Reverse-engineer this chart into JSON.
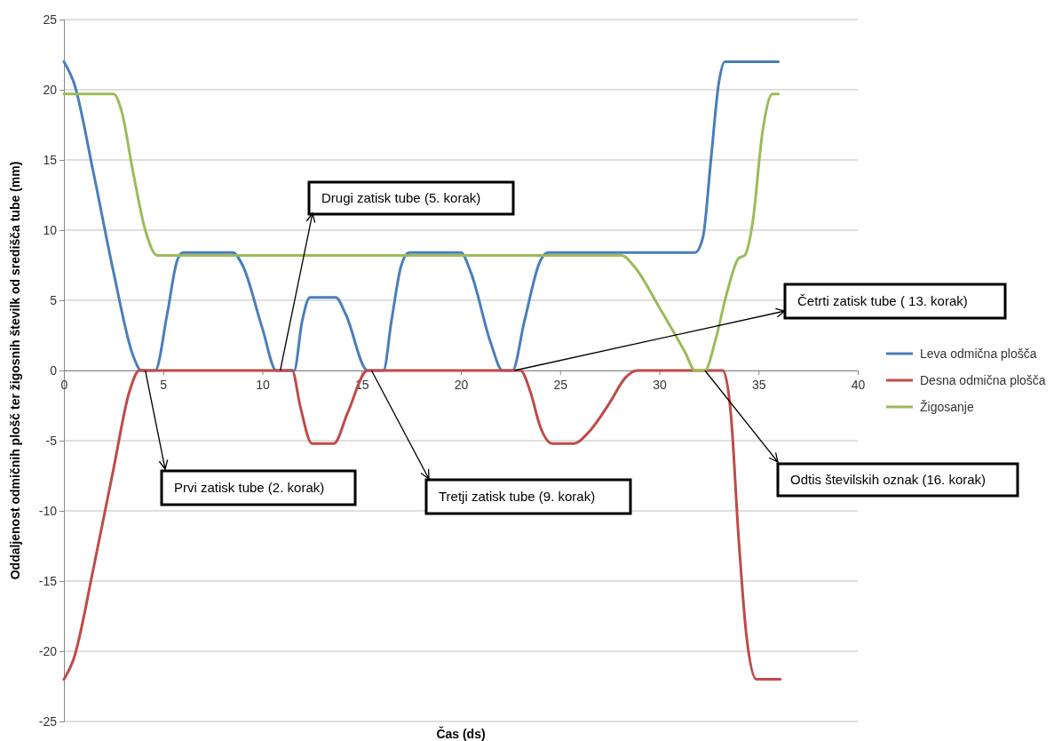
{
  "chart_data": {
    "type": "line",
    "xlabel": "Čas (ds)",
    "ylabel": "Oddaljenost odmičnih plošč ter žigosnih številk od središča tube (mm)",
    "xlim": [
      0,
      40
    ],
    "xticks": [
      0,
      5,
      10,
      15,
      20,
      25,
      30,
      35,
      40
    ],
    "ylim": [
      -25,
      25
    ],
    "yticks": [
      -25,
      -20,
      -15,
      -10,
      -5,
      0,
      5,
      10,
      15,
      20,
      25
    ],
    "grid": "y",
    "legend": "right",
    "line_style": "solid",
    "marker": "none",
    "series": [
      {
        "name": "Leva odmična plošča",
        "color": "#4a7ebb",
        "x": [
          0,
          0.5,
          1.5,
          2.5,
          3.5,
          3.9,
          4.6,
          5.2,
          5.7,
          6.0,
          8.5,
          9.0,
          10.0,
          10.7,
          11.6,
          12.0,
          12.4,
          13.7,
          14.2,
          15.3,
          16.1,
          16.5,
          17.0,
          17.4,
          20.0,
          20.5,
          21.5,
          22.1,
          22.6,
          23.2,
          24.0,
          24.4,
          31.8,
          32.2,
          32.6,
          33.0,
          33.3,
          36.0
        ],
        "values": [
          22,
          20.5,
          14,
          7,
          1,
          0,
          0,
          4,
          7.8,
          8.4,
          8.4,
          7.5,
          3,
          0,
          0,
          3.5,
          5.2,
          5.2,
          4,
          0,
          0,
          3.5,
          7.5,
          8.4,
          8.4,
          7,
          2,
          0,
          0,
          3.5,
          7.8,
          8.4,
          8.4,
          9.5,
          15,
          20.5,
          22,
          22
        ]
      },
      {
        "name": "Desna odmična plošča",
        "color": "#be4b48",
        "x": [
          0,
          0.5,
          1.5,
          2.5,
          3.3,
          3.8,
          11.5,
          11.9,
          12.5,
          13.6,
          14.3,
          15.3,
          23.0,
          23.5,
          24.0,
          24.6,
          25.7,
          26.5,
          27.5,
          28.3,
          28.9,
          33.2,
          33.6,
          34.0,
          34.4,
          34.9,
          36.1
        ],
        "values": [
          -22,
          -20.5,
          -14,
          -7,
          -1.5,
          0,
          0,
          -2.5,
          -5.2,
          -5.2,
          -3,
          0,
          0,
          -1.5,
          -4,
          -5.2,
          -5.2,
          -4.3,
          -2.3,
          -0.5,
          0,
          0,
          -3,
          -12,
          -19,
          -22,
          -22
        ]
      },
      {
        "name": "Žigosanje",
        "color": "#9bbb59",
        "x": [
          0,
          2.5,
          2.9,
          3.5,
          4.1,
          4.7,
          28.1,
          28.8,
          30.0,
          31.3,
          31.8,
          32.3,
          32.8,
          33.4,
          34.0,
          34.3,
          34.7,
          35.2,
          35.7,
          36.0
        ],
        "values": [
          19.7,
          19.7,
          18.5,
          14,
          10,
          8.2,
          8.2,
          7.3,
          4.5,
          1.3,
          0,
          0,
          2,
          5.5,
          8,
          8.2,
          10.5,
          17,
          19.7,
          19.7
        ]
      }
    ],
    "annotations": [
      {
        "text": "Prvi zatisk tube (2. korak)",
        "x": 4.1,
        "y": 0
      },
      {
        "text": "Drugi zatisk tube (5. korak)",
        "x": 10.9,
        "y": 0
      },
      {
        "text": "Tretji zatisk tube (9. korak)",
        "x": 15.5,
        "y": 0
      },
      {
        "text": "Četrti zatisk tube ( 13. korak)",
        "x": 22.7,
        "y": 0
      },
      {
        "text": "Odtis številskih oznak (16. korak)",
        "x": 32.3,
        "y": 0
      }
    ]
  }
}
